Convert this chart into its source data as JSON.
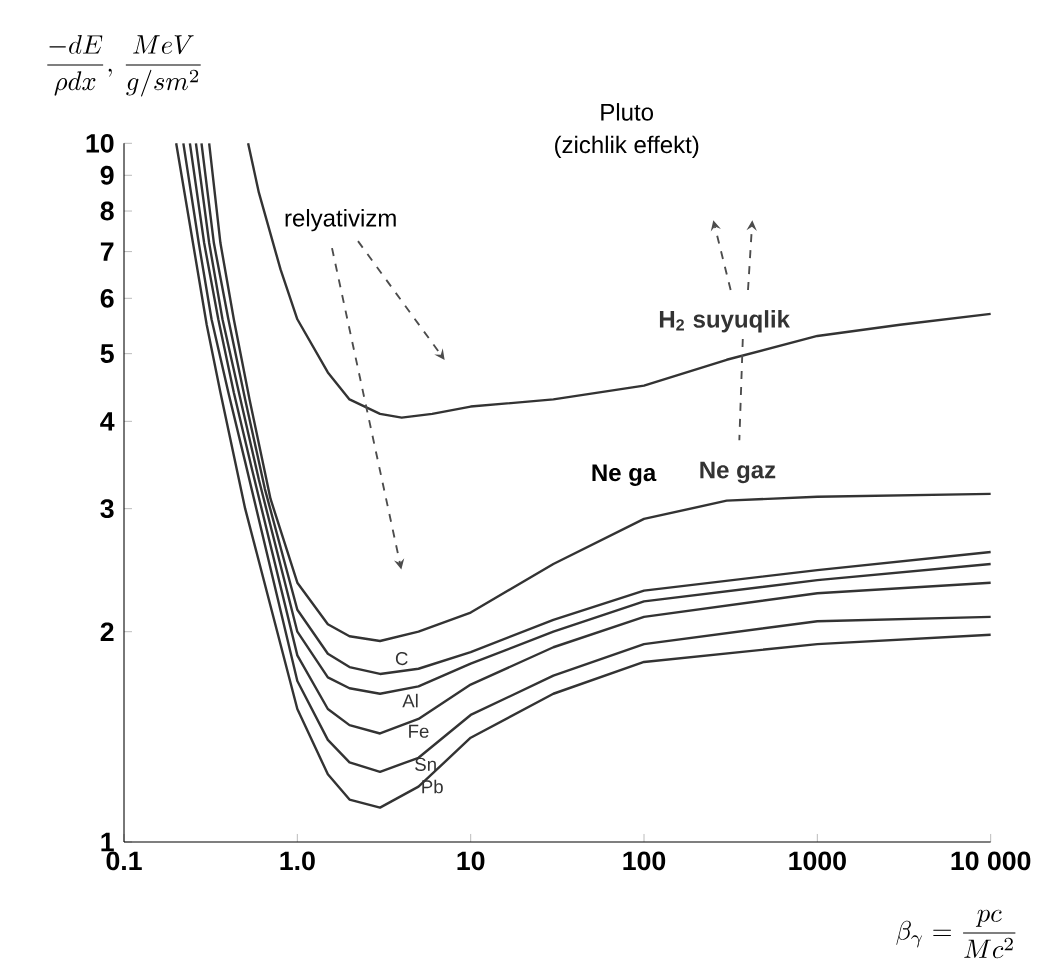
{
  "chart_data": {
    "type": "line",
    "xlabel": "\\beta_{\\gamma}=\\frac{pc}{Mc^{2}}",
    "ylabel": "\\frac{-dE}{\\rho dx},\\,\\frac{MeV}{g/sm^{2}}",
    "log": "xy",
    "xlim": [
      0.1,
      10000
    ],
    "ylim": [
      1,
      10
    ],
    "xticks": [
      0.1,
      {
        "value": 1,
        "label": "1.0"
      },
      10,
      100,
      1000,
      {
        "value": 10000,
        "label": "10 000"
      }
    ],
    "yticks": [
      1,
      2,
      3,
      4,
      5,
      6,
      7,
      8,
      9,
      10
    ],
    "grid": false,
    "marker": "none",
    "line_style": "solid",
    "annotations": [
      "relyativizm",
      "Pluto",
      "(zichlik effekt)",
      "Ne ga"
    ],
    "series": [
      {
        "name": "H$_{2}$ suyuqlik",
        "color": "#333333",
        "x": [
          0.52,
          0.6,
          0.8,
          1,
          1.5,
          2,
          3,
          4,
          6,
          10,
          30,
          100,
          300,
          1000,
          3000,
          10000
        ],
        "values": [
          10,
          8.5,
          6.6,
          5.6,
          4.7,
          4.3,
          4.1,
          4.05,
          4.1,
          4.2,
          4.3,
          4.5,
          4.9,
          5.3,
          5.5,
          5.7
        ]
      },
      {
        "name": "Ne gaz",
        "color": "#333333",
        "x": [
          0.31,
          0.36,
          0.43,
          0.53,
          0.7,
          1,
          1.5,
          2,
          3,
          5,
          10,
          30,
          100,
          300,
          1000,
          10000
        ],
        "values": [
          10,
          7.2,
          5.6,
          4.3,
          3.1,
          2.35,
          2.05,
          1.97,
          1.94,
          2.0,
          2.13,
          2.5,
          2.9,
          3.08,
          3.12,
          3.15
        ]
      },
      {
        "name": "C",
        "color": "#333333",
        "x": [
          0.28,
          0.33,
          0.4,
          0.5,
          0.65,
          1,
          1.5,
          2,
          3,
          5,
          10,
          30,
          100,
          1000,
          10000
        ],
        "values": [
          10,
          7.2,
          5.6,
          4.3,
          3.2,
          2.15,
          1.86,
          1.78,
          1.74,
          1.77,
          1.87,
          2.08,
          2.29,
          2.45,
          2.6
        ]
      },
      {
        "name": "Al",
        "color": "#333333",
        "x": [
          0.26,
          0.31,
          0.37,
          0.46,
          0.6,
          1,
          1.5,
          2,
          3,
          5,
          10,
          30,
          100,
          1000,
          10000
        ],
        "values": [
          10,
          7.2,
          5.6,
          4.4,
          3.3,
          2.0,
          1.72,
          1.66,
          1.63,
          1.67,
          1.8,
          2.0,
          2.21,
          2.37,
          2.5
        ]
      },
      {
        "name": "Fe",
        "color": "#333333",
        "x": [
          0.24,
          0.29,
          0.35,
          0.43,
          0.55,
          1,
          1.5,
          2,
          3,
          5,
          10,
          30,
          100,
          1000,
          10000
        ],
        "values": [
          10,
          7.2,
          5.6,
          4.4,
          3.4,
          1.85,
          1.55,
          1.47,
          1.43,
          1.5,
          1.68,
          1.9,
          2.1,
          2.27,
          2.35
        ]
      },
      {
        "name": "Sn",
        "color": "#333333",
        "x": [
          0.22,
          0.27,
          0.32,
          0.4,
          0.5,
          1,
          1.5,
          2,
          3,
          5,
          10,
          30,
          100,
          1000,
          10000
        ],
        "values": [
          10,
          7.2,
          5.6,
          4.4,
          3.5,
          1.7,
          1.4,
          1.3,
          1.26,
          1.32,
          1.52,
          1.73,
          1.92,
          2.07,
          2.1
        ]
      },
      {
        "name": "Pb",
        "color": "#333333",
        "x": [
          0.2,
          0.25,
          0.3,
          0.36,
          0.5,
          1,
          1.5,
          2,
          3,
          5,
          10,
          30,
          100,
          1000,
          10000
        ],
        "values": [
          10,
          7.2,
          5.5,
          4.4,
          3.0,
          1.55,
          1.25,
          1.15,
          1.12,
          1.2,
          1.41,
          1.63,
          1.81,
          1.92,
          1.98
        ]
      }
    ]
  }
}
